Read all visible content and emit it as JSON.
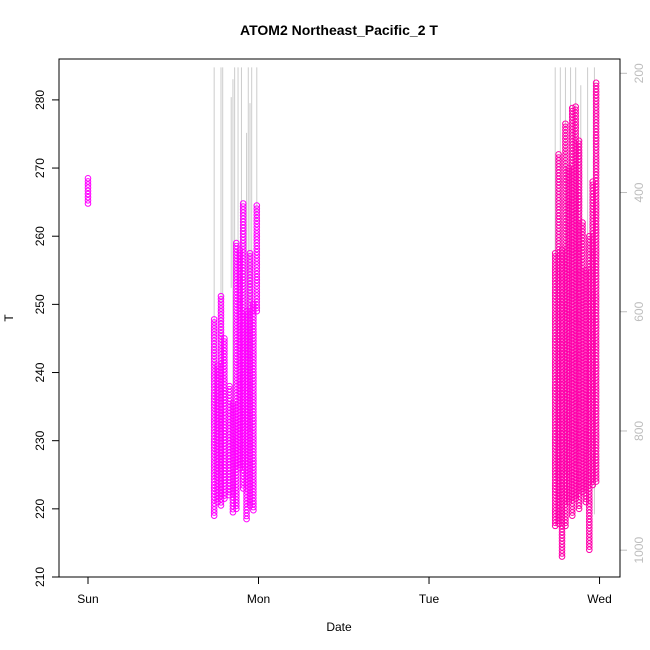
{
  "chart_data": {
    "type": "scatter",
    "title": "ATOM2 Northeast_Pacific_2 T",
    "xlabel": "Date",
    "ylabel": "T",
    "x_ticks": [
      "Sun",
      "Mon",
      "Tue",
      "Wed"
    ],
    "x_range_days": [
      -0.17,
      3.12
    ],
    "ylim": [
      210,
      286
    ],
    "y_ticks": [
      210,
      220,
      230,
      240,
      250,
      260,
      270,
      280
    ],
    "y2_ticks": [
      200,
      400,
      600,
      800,
      1000
    ],
    "y2_lim": [
      1045,
      176
    ],
    "grid": false,
    "colors": {
      "magenta": "#ff00ff",
      "pink": "#ff00aa",
      "secondary_line": "#cccccc",
      "right_axis": "#bdbdbd"
    },
    "series": [
      {
        "color": "#ff00ff",
        "strips": [
          {
            "x": 0.0,
            "ymin": 264.8,
            "ymax": 268.5
          },
          {
            "x": 0.74,
            "ymin": 219.0,
            "ymax": 247.8
          },
          {
            "x": 0.76,
            "ymin": 221.0,
            "ymax": 241.0
          },
          {
            "x": 0.78,
            "ymin": 220.5,
            "ymax": 251.2
          },
          {
            "x": 0.8,
            "ymin": 221.5,
            "ymax": 245.0
          },
          {
            "x": 0.83,
            "ymin": 222.0,
            "ymax": 238.0
          },
          {
            "x": 0.85,
            "ymin": 219.5,
            "ymax": 235.5
          },
          {
            "x": 0.87,
            "ymin": 220.0,
            "ymax": 259.0
          },
          {
            "x": 0.89,
            "ymin": 226.0,
            "ymax": 258.0
          },
          {
            "x": 0.91,
            "ymin": 223.0,
            "ymax": 264.8
          },
          {
            "x": 0.93,
            "ymin": 218.5,
            "ymax": 249.0
          },
          {
            "x": 0.95,
            "ymin": 220.5,
            "ymax": 257.5
          },
          {
            "x": 0.97,
            "ymin": 219.8,
            "ymax": 250.0
          },
          {
            "x": 0.99,
            "ymin": 249.0,
            "ymax": 264.5
          }
        ]
      },
      {
        "color": "#ff00aa",
        "strips": [
          {
            "x": 2.74,
            "ymin": 217.5,
            "ymax": 257.5
          },
          {
            "x": 2.76,
            "ymin": 217.8,
            "ymax": 272.0
          },
          {
            "x": 2.78,
            "ymin": 213.0,
            "ymax": 258.0
          },
          {
            "x": 2.8,
            "ymin": 217.5,
            "ymax": 276.5
          },
          {
            "x": 2.82,
            "ymin": 221.0,
            "ymax": 270.0
          },
          {
            "x": 2.84,
            "ymin": 219.0,
            "ymax": 278.8
          },
          {
            "x": 2.86,
            "ymin": 221.5,
            "ymax": 279.0
          },
          {
            "x": 2.88,
            "ymin": 220.0,
            "ymax": 274.0
          },
          {
            "x": 2.9,
            "ymin": 222.5,
            "ymax": 262.0
          },
          {
            "x": 2.92,
            "ymin": 221.0,
            "ymax": 255.0
          },
          {
            "x": 2.94,
            "ymin": 214.0,
            "ymax": 260.0
          },
          {
            "x": 2.96,
            "ymin": 223.5,
            "ymax": 268.0
          },
          {
            "x": 2.98,
            "ymin": 224.0,
            "ymax": 282.5
          }
        ]
      }
    ],
    "secondary_line": [
      {
        "x": 0.74,
        "lo": 190,
        "hi": 880
      },
      {
        "x": 0.78,
        "lo": 190,
        "hi": 690
      },
      {
        "x": 0.79,
        "lo": 190,
        "hi": 580
      },
      {
        "x": 0.84,
        "lo": 240,
        "hi": 560
      },
      {
        "x": 0.85,
        "lo": 210,
        "hi": 900
      },
      {
        "x": 0.86,
        "lo": 190,
        "hi": 550
      },
      {
        "x": 0.88,
        "lo": 190,
        "hi": 520
      },
      {
        "x": 0.9,
        "lo": 190,
        "hi": 650
      },
      {
        "x": 0.93,
        "lo": 300,
        "hi": 700
      },
      {
        "x": 0.94,
        "lo": 190,
        "hi": 860
      },
      {
        "x": 0.95,
        "lo": 250,
        "hi": 800
      },
      {
        "x": 0.96,
        "lo": 190,
        "hi": 660
      },
      {
        "x": 0.99,
        "lo": 190,
        "hi": 450
      },
      {
        "x": 2.74,
        "lo": 190,
        "hi": 880
      },
      {
        "x": 2.77,
        "lo": 190,
        "hi": 900
      },
      {
        "x": 2.8,
        "lo": 190,
        "hi": 870
      },
      {
        "x": 2.83,
        "lo": 190,
        "hi": 820
      },
      {
        "x": 2.86,
        "lo": 190,
        "hi": 860
      },
      {
        "x": 2.89,
        "lo": 220,
        "hi": 780
      },
      {
        "x": 2.93,
        "lo": 190,
        "hi": 900
      },
      {
        "x": 2.97,
        "lo": 190,
        "hi": 940
      }
    ]
  }
}
